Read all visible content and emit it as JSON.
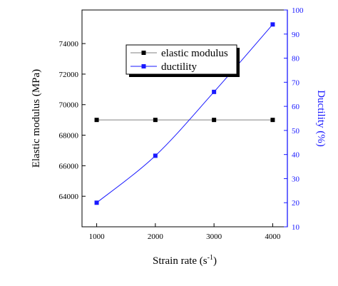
{
  "chart_data": {
    "type": "line",
    "x": [
      1000,
      2000,
      3000,
      4000
    ],
    "xlabel": "Strain rate (s",
    "xlabel_sup": "-1",
    "xlabel_close": ")",
    "xlim": [
      750,
      4250
    ],
    "xticks": [
      1000,
      2000,
      3000,
      4000
    ],
    "ylabel_left": "Elastic modulus (MPa)",
    "ylim_left": [
      62000,
      76200
    ],
    "yticks_left": [
      64000,
      66000,
      68000,
      70000,
      72000,
      74000
    ],
    "ylabel_right": "Ductility (%)",
    "ylim_right": [
      10,
      100
    ],
    "yticks_right": [
      10,
      20,
      30,
      40,
      50,
      60,
      70,
      80,
      90,
      100
    ],
    "series": [
      {
        "name": "elastic modulus",
        "axis": "left",
        "values": [
          69000,
          69000,
          69000,
          69000
        ],
        "color": "#000000",
        "line_color": "#808080",
        "marker": "square"
      },
      {
        "name": "ductility",
        "axis": "right",
        "values": [
          20,
          39.5,
          66,
          94
        ],
        "color": "#1a1aff",
        "line_color": "#1a1aff",
        "marker": "square"
      }
    ],
    "legend_position": "top-center",
    "grid": false
  },
  "colors": {
    "left_axis": "#000000",
    "right_axis": "#1a1aff"
  }
}
